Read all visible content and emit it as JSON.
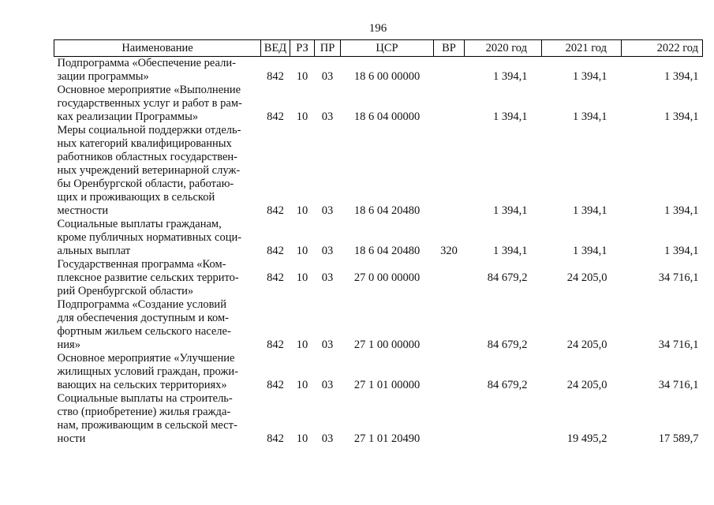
{
  "page": {
    "number": "196"
  },
  "table": {
    "headers": [
      "Наименование",
      "ВЕД",
      "РЗ",
      "ПР",
      "ЦСР",
      "ВР",
      "2020 год",
      "2021 год",
      "2022 год"
    ],
    "rows": [
      {
        "name_lines": [
          "Подпрограмма «Обеспечение реали-",
          "зации программы»"
        ],
        "ved": "842",
        "rz": "10",
        "pr": "03",
        "csr": "18 6 00 00000",
        "vr": "",
        "y2020": "1 394,1",
        "y2021": "1 394,1",
        "y2022": "1 394,1"
      },
      {
        "name_lines": [
          "Основное мероприятие «Выполнение",
          "государственных услуг и работ в рам-",
          "ках реализации Программы»"
        ],
        "ved": "842",
        "rz": "10",
        "pr": "03",
        "csr": "18 6 04 00000",
        "vr": "",
        "y2020": "1 394,1",
        "y2021": "1 394,1",
        "y2022": "1 394,1"
      },
      {
        "name_lines": [
          "Меры социальной поддержки отдель-",
          "ных категорий квалифицированных",
          "работников областных государствен-",
          "ных учреждений ветеринарной служ-",
          "бы Оренбургской области, работаю-",
          "щих и проживающих в сельской",
          "местности"
        ],
        "ved": "842",
        "rz": "10",
        "pr": "03",
        "csr": "18 6 04 20480",
        "vr": "",
        "y2020": "1 394,1",
        "y2021": "1 394,1",
        "y2022": "1 394,1"
      },
      {
        "name_lines": [
          "Социальные выплаты гражданам,",
          "кроме публичных нормативных соци-",
          "альных выплат"
        ],
        "ved": "842",
        "rz": "10",
        "pr": "03",
        "csr": "18 6 04 20480",
        "vr": "320",
        "y2020": "1 394,1",
        "y2021": "1 394,1",
        "y2022": "1 394,1"
      },
      {
        "name_lines": [
          "Государственная программа «Ком-",
          "плексное развитие сельских террито-",
          "рий Оренбургской области»"
        ],
        "ved": "842",
        "rz": "10",
        "pr": "03",
        "csr": "27 0 00 00000",
        "vr": "",
        "y2020": "84 679,2",
        "y2021": "24 205,0",
        "y2022": "34 716,1"
      },
      {
        "name_lines": [
          "Подпрограмма «Создание условий",
          "для обеспечения доступным и ком-",
          "фортным жильем сельского населе-",
          "ния»"
        ],
        "ved": "842",
        "rz": "10",
        "pr": "03",
        "csr": "27 1 00 00000",
        "vr": "",
        "y2020": "84 679,2",
        "y2021": "24 205,0",
        "y2022": "34 716,1"
      },
      {
        "name_lines": [
          "Основное мероприятие «Улучшение",
          "жилищных условий граждан, прожи-",
          "вающих на сельских территориях»"
        ],
        "ved": "842",
        "rz": "10",
        "pr": "03",
        "csr": "27 1 01 00000",
        "vr": "",
        "y2020": "84 679,2",
        "y2021": "24 205,0",
        "y2022": "34 716,1"
      },
      {
        "name_lines": [
          "Социальные выплаты на строитель-",
          "ство (приобретение) жилья гражда-",
          "нам, проживающим в сельской мест-",
          "ности"
        ],
        "ved": "842",
        "rz": "10",
        "pr": "03",
        "csr": "27 1 01 20490",
        "vr": "",
        "y2020": "",
        "y2021": "19 495,2",
        "y2022": "17 589,7"
      }
    ]
  }
}
